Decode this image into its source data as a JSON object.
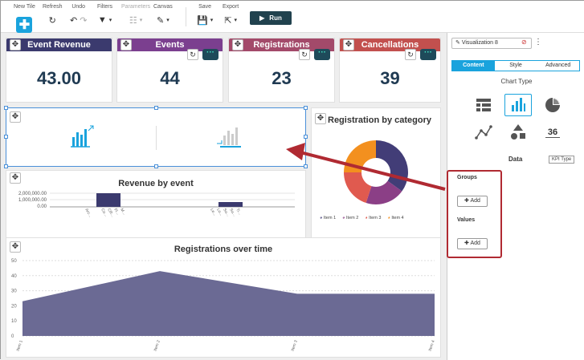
{
  "toolbar": {
    "new_tile": "New Tile",
    "refresh": "Refresh",
    "undo": "Undo",
    "filters": "Filters",
    "parameters": "Parameters",
    "canvas": "Canvas",
    "save": "Save",
    "export": "Export",
    "run": "Run"
  },
  "kpis": [
    {
      "title": "Event Revenue",
      "value": "43.00",
      "color": "#3b3a6e"
    },
    {
      "title": "Events",
      "value": "44",
      "color": "#7b3f8f"
    },
    {
      "title": "Registrations",
      "value": "23",
      "color": "#a34a6a"
    },
    {
      "title": "Cancellations",
      "value": "39",
      "color": "#c2504e"
    }
  ],
  "revenue_chart": {
    "title": "Revenue by event",
    "yticks": [
      "2,000,000.00",
      "1,000,000.00",
      "0.00"
    ]
  },
  "donut": {
    "title": "Registration by category",
    "legend": [
      "Item 1",
      "Item 2",
      "Item 3",
      "Item 4"
    ],
    "colors": [
      "#423d77",
      "#8b3f86",
      "#e05a4f",
      "#f3901f"
    ],
    "values": [
      35,
      20,
      20,
      25
    ]
  },
  "area_chart": {
    "title": "Registrations over time",
    "yticks": [
      "50",
      "40",
      "30",
      "20",
      "10",
      "0"
    ],
    "xticks": [
      "Item 1",
      "Item 2",
      "Item 3",
      "Item 4"
    ],
    "values": [
      23,
      43,
      28,
      28
    ],
    "color": "#6b6a94"
  },
  "panel": {
    "viz_name": "Visualization 8",
    "tabs": [
      "Content",
      "Style",
      "Advanced"
    ],
    "chart_type_label": "Chart Type",
    "kpi_value": "36",
    "tooltip": "KPI Type",
    "data_label": "Data",
    "groups_label": "Groups",
    "values_label": "Values",
    "add_label": "Add"
  },
  "accent": "#1aa3dd",
  "highlight": "#b02a32"
}
